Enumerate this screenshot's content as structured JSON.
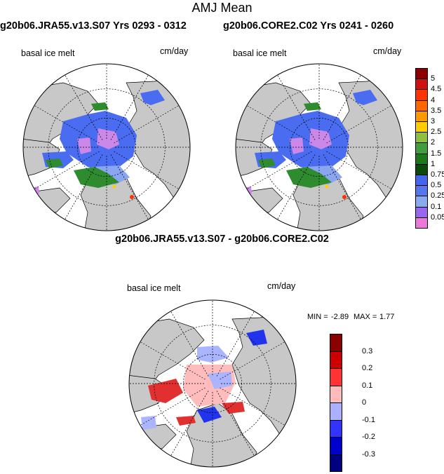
{
  "figure": {
    "title": "AMJ Mean",
    "variable_label": "basal ice melt",
    "units_label": "cm/day"
  },
  "panels": [
    {
      "id": "left",
      "title": "g20b06.JRA55.v13.S07  Yrs 0293 - 0312",
      "variable": "basal ice melt",
      "units": "cm/day"
    },
    {
      "id": "right",
      "title": "g20b06.CORE2.C02  Yrs 0241 - 0260",
      "variable": "basal ice melt",
      "units": "cm/day"
    },
    {
      "id": "diff",
      "title": "g20b06.JRA55.v13.S07 - g20b06.CORE2.C02",
      "variable": "basal ice melt",
      "units": "cm/day",
      "stats": {
        "min_label": "MIN =",
        "min_value": "-2.89",
        "max_label": "MAX =",
        "max_value": "1.77"
      }
    }
  ],
  "colorbar_main": {
    "labels": [
      "5",
      "4.5",
      "4",
      "3.5",
      "3",
      "2.5",
      "2",
      "1.5",
      "1",
      "0.75",
      "0.5",
      "0.25",
      "0.1",
      "0.05"
    ],
    "colors": [
      "#8b0000",
      "#d01010",
      "#ff3300",
      "#ff6600",
      "#ff9900",
      "#ffcc00",
      "#8fbf3f",
      "#3f9f3f",
      "#1a7a1a",
      "#0a4a0a",
      "#4466ee",
      "#5577ee",
      "#88aaee",
      "#9966ee",
      "#ee77dd"
    ]
  },
  "colorbar_diff": {
    "labels": [
      "0.3",
      "0.2",
      "0.1",
      "0",
      "-0.1",
      "-0.2",
      "-0.3"
    ],
    "colors": [
      "#8b0000",
      "#cc0000",
      "#ff3333",
      "#ffbbbb",
      "#aab0ff",
      "#3333ff",
      "#0000cc",
      "#000080"
    ]
  },
  "colors": {
    "land": "#c8c8c8",
    "ocean": "#ffffff",
    "ice_blue": "#4a6cf0",
    "ice_light_blue": "#8aa6f0",
    "ice_purple": "#cc88e8",
    "green": "#2e8b2e",
    "diff_pink": "#ffbcbc",
    "diff_red": "#e03030",
    "diff_lightblue": "#aab4ff",
    "diff_blue": "#2233ee"
  }
}
